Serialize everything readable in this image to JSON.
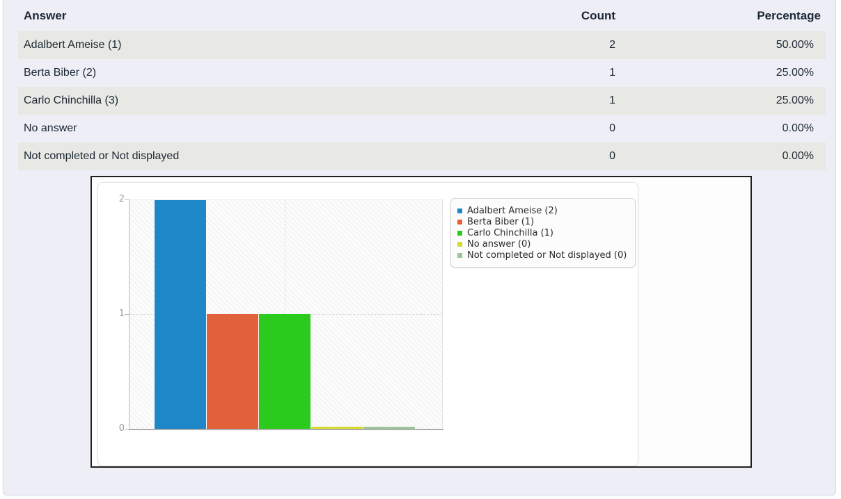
{
  "table": {
    "headers": {
      "answer": "Answer",
      "count": "Count",
      "percentage": "Percentage"
    },
    "rows": [
      {
        "answer": "Adalbert Ameise (1)",
        "count": "2",
        "percentage": "50.00%"
      },
      {
        "answer": "Berta Biber (2)",
        "count": "1",
        "percentage": "25.00%"
      },
      {
        "answer": "Carlo Chinchilla (3)",
        "count": "1",
        "percentage": "25.00%"
      },
      {
        "answer": "No answer",
        "count": "0",
        "percentage": "0.00%"
      },
      {
        "answer": "Not completed or Not displayed",
        "count": "0",
        "percentage": "0.00%"
      }
    ]
  },
  "chart_data": {
    "type": "bar",
    "title": "",
    "categories": [
      ""
    ],
    "series": [
      {
        "name": "Adalbert Ameise (2)",
        "values": [
          2
        ],
        "color": "#1d87c8"
      },
      {
        "name": "Berta Biber (1)",
        "values": [
          1
        ],
        "color": "#e0613a"
      },
      {
        "name": "Carlo Chinchilla (1)",
        "values": [
          1
        ],
        "color": "#2bcb1e"
      },
      {
        "name": "No answer (0)",
        "values": [
          0
        ],
        "color": "#d8da2b"
      },
      {
        "name": "Not completed or Not displayed (0)",
        "values": [
          0
        ],
        "color": "#9cc79a"
      }
    ],
    "ylim": [
      0,
      2
    ],
    "yticks": [
      0,
      1,
      2
    ],
    "grid": true,
    "legend_position": "right",
    "legend_entries": [
      "Adalbert Ameise (2)",
      "Berta Biber (1)",
      "Carlo Chinchilla (1)",
      "No answer (0)",
      "Not completed or Not displayed (0)"
    ]
  },
  "palette": {
    "pagebg": "#ffffff",
    "panelbg": "#eeeef7",
    "panelborder": "#d8d8e3",
    "rowalt": "#e8e8e4",
    "textcolor": "#1b2733",
    "frameborder": "#1f1f1f",
    "innerborder": "#e2e2e2",
    "plotbg": "#fcfcfc",
    "hatchline": "rgba(160,160,160,0.14)",
    "axis": "#b8b8b8",
    "baseline": "#adadad",
    "gridline": "#dcdcdc",
    "ticklabel": "#9a9a9a",
    "legendbg": "#fcfcfc",
    "legendborder": "#d6d6d6",
    "legendtext": "#2b2b2b"
  }
}
